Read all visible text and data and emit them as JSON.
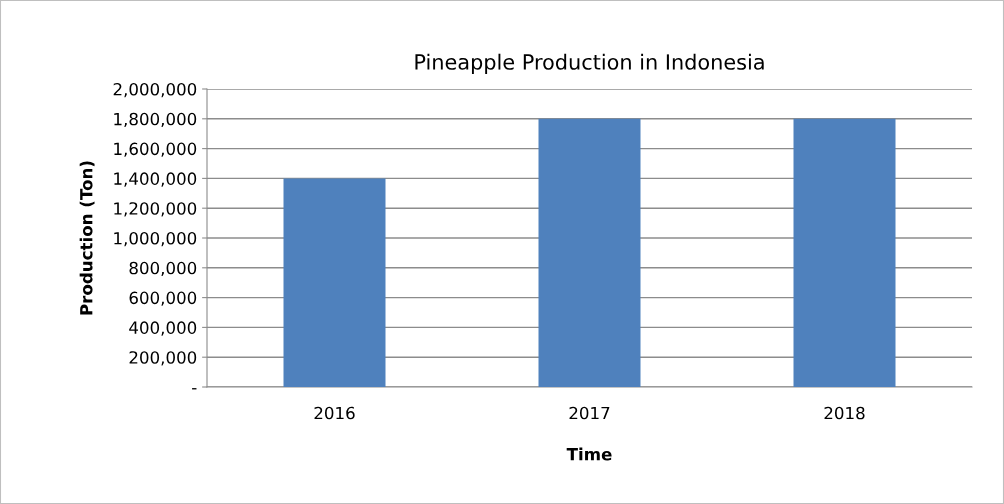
{
  "chart_data": {
    "type": "bar",
    "title": "Pineapple Production in Indonesia",
    "xlabel": "Time",
    "ylabel": "Production (Ton)",
    "categories": [
      "2016",
      "2017",
      "2018"
    ],
    "series": [
      {
        "color": "#4f81bd",
        "values": [
          1400000,
          1800000,
          1800000
        ]
      }
    ],
    "ylim": [
      0,
      2000000
    ],
    "yticks": [
      {
        "value": 0,
        "label": "-"
      },
      {
        "value": 200000,
        "label": "200,000"
      },
      {
        "value": 400000,
        "label": "400,000"
      },
      {
        "value": 600000,
        "label": "600,000"
      },
      {
        "value": 800000,
        "label": "800,000"
      },
      {
        "value": 1000000,
        "label": "1,000,000"
      },
      {
        "value": 1200000,
        "label": "1,200,000"
      },
      {
        "value": 1400000,
        "label": "1,400,000"
      },
      {
        "value": 1600000,
        "label": "1,600,000"
      },
      {
        "value": 1800000,
        "label": "1,800,000"
      },
      {
        "value": 2000000,
        "label": "2,000,000"
      }
    ],
    "grid": "y"
  }
}
